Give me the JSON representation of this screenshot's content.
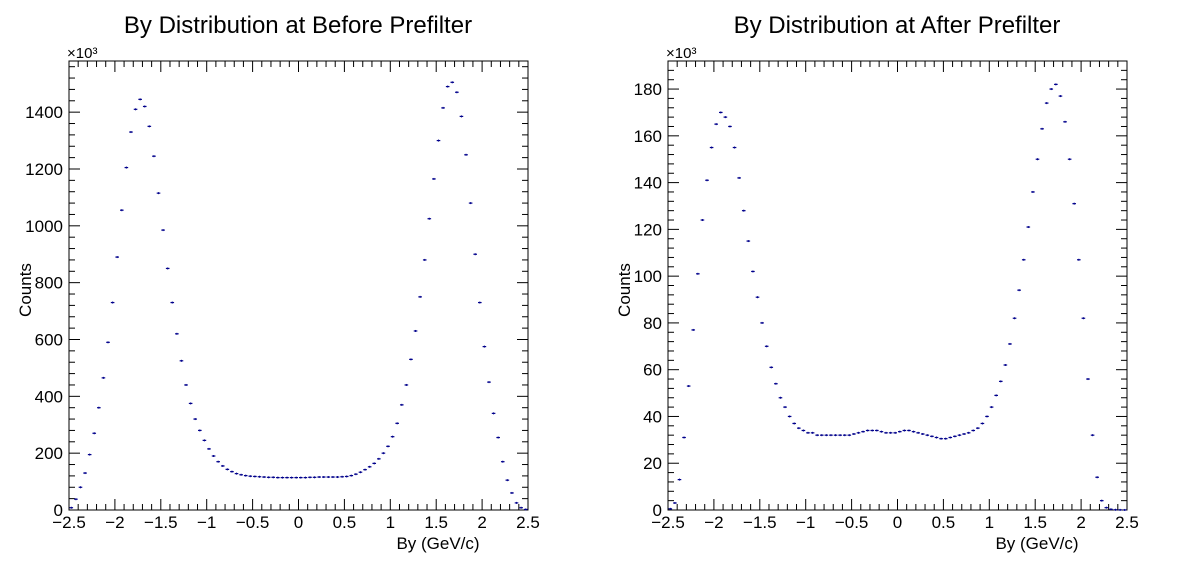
{
  "chart_data": [
    {
      "type": "scatter",
      "title": "By Distribution at Before Prefilter",
      "xlabel": "By (GeV/c)",
      "ylabel": "Counts",
      "y_multiplier_label": "×10³",
      "xlim": [
        -2.5,
        2.5
      ],
      "ylim": [
        0,
        1580
      ],
      "x_ticks": [
        "−2.5",
        "−2",
        "−1.5",
        "−1",
        "−0.5",
        "0",
        "0.5",
        "1",
        "1.5",
        "2",
        "2.5"
      ],
      "x_tick_values": [
        -2.5,
        -2,
        -1.5,
        -1,
        -0.5,
        0,
        0.5,
        1,
        1.5,
        2,
        2.5
      ],
      "y_ticks": [
        "0",
        "200",
        "400",
        "600",
        "800",
        "1000",
        "1200",
        "1400"
      ],
      "y_tick_values": [
        0,
        200,
        400,
        600,
        800,
        1000,
        1200,
        1400
      ],
      "marker_color": "#00008b",
      "grid": false,
      "series": [
        {
          "x": [
            -2.475,
            -2.425,
            -2.375,
            -2.325,
            -2.275,
            -2.225,
            -2.175,
            -2.125,
            -2.075,
            -2.025,
            -1.975,
            -1.925,
            -1.875,
            -1.825,
            -1.775,
            -1.725,
            -1.675,
            -1.625,
            -1.575,
            -1.525,
            -1.475,
            -1.425,
            -1.375,
            -1.325,
            -1.275,
            -1.225,
            -1.175,
            -1.125,
            -1.075,
            -1.025,
            -0.975,
            -0.925,
            -0.875,
            -0.825,
            -0.775,
            -0.725,
            -0.675,
            -0.625,
            -0.575,
            -0.525,
            -0.475,
            -0.425,
            -0.375,
            -0.325,
            -0.275,
            -0.225,
            -0.175,
            -0.125,
            -0.075,
            -0.025,
            0.025,
            0.075,
            0.125,
            0.175,
            0.225,
            0.275,
            0.325,
            0.375,
            0.425,
            0.475,
            0.525,
            0.575,
            0.625,
            0.675,
            0.725,
            0.775,
            0.825,
            0.875,
            0.925,
            0.975,
            1.025,
            1.075,
            1.125,
            1.175,
            1.225,
            1.275,
            1.325,
            1.375,
            1.425,
            1.475,
            1.525,
            1.575,
            1.625,
            1.675,
            1.725,
            1.775,
            1.825,
            1.875,
            1.925,
            1.975,
            2.025,
            2.075,
            2.125,
            2.175,
            2.225,
            2.275,
            2.325,
            2.375,
            2.425,
            2.475
          ],
          "y": [
            8,
            38,
            80,
            130,
            195,
            270,
            360,
            465,
            590,
            730,
            890,
            1055,
            1205,
            1330,
            1410,
            1445,
            1420,
            1350,
            1245,
            1115,
            985,
            850,
            730,
            620,
            525,
            440,
            375,
            320,
            280,
            245,
            215,
            190,
            170,
            155,
            143,
            135,
            128,
            124,
            121,
            119,
            118,
            117,
            116,
            115,
            115,
            114,
            114,
            114,
            114,
            114,
            114,
            114,
            115,
            115,
            116,
            116,
            116,
            116,
            116,
            117,
            118,
            121,
            126,
            133,
            142,
            152,
            164,
            180,
            200,
            224,
            258,
            305,
            370,
            440,
            530,
            630,
            750,
            880,
            1025,
            1165,
            1300,
            1415,
            1490,
            1505,
            1470,
            1385,
            1250,
            1080,
            900,
            730,
            575,
            450,
            340,
            255,
            170,
            105,
            60,
            25,
            8,
            2
          ]
        }
      ]
    },
    {
      "type": "scatter",
      "title": "By Distribution at After Prefilter",
      "xlabel": "By (GeV/c)",
      "ylabel": "Counts",
      "y_multiplier_label": "×10³",
      "xlim": [
        -2.5,
        2.5
      ],
      "ylim": [
        0,
        192
      ],
      "x_ticks": [
        "−2.5",
        "−2",
        "−1.5",
        "−1",
        "−0.5",
        "0",
        "0.5",
        "1",
        "1.5",
        "2",
        "2.5"
      ],
      "x_tick_values": [
        -2.5,
        -2,
        -1.5,
        -1,
        -0.5,
        0,
        0.5,
        1,
        1.5,
        2,
        2.5
      ],
      "y_ticks": [
        "0",
        "20",
        "40",
        "60",
        "80",
        "100",
        "120",
        "140",
        "160",
        "180"
      ],
      "y_tick_values": [
        0,
        20,
        40,
        60,
        80,
        100,
        120,
        140,
        160,
        180
      ],
      "marker_color": "#00008b",
      "grid": false,
      "series": [
        {
          "x": [
            -2.475,
            -2.425,
            -2.375,
            -2.325,
            -2.275,
            -2.225,
            -2.175,
            -2.125,
            -2.075,
            -2.025,
            -1.975,
            -1.925,
            -1.875,
            -1.825,
            -1.775,
            -1.725,
            -1.675,
            -1.625,
            -1.575,
            -1.525,
            -1.475,
            -1.425,
            -1.375,
            -1.325,
            -1.275,
            -1.225,
            -1.175,
            -1.125,
            -1.075,
            -1.025,
            -0.975,
            -0.925,
            -0.875,
            -0.825,
            -0.775,
            -0.725,
            -0.675,
            -0.625,
            -0.575,
            -0.525,
            -0.475,
            -0.425,
            -0.375,
            -0.325,
            -0.275,
            -0.225,
            -0.175,
            -0.125,
            -0.075,
            -0.025,
            0.025,
            0.075,
            0.125,
            0.175,
            0.225,
            0.275,
            0.325,
            0.375,
            0.425,
            0.475,
            0.525,
            0.575,
            0.625,
            0.675,
            0.725,
            0.775,
            0.825,
            0.875,
            0.925,
            0.975,
            1.025,
            1.075,
            1.125,
            1.175,
            1.225,
            1.275,
            1.325,
            1.375,
            1.425,
            1.475,
            1.525,
            1.575,
            1.625,
            1.675,
            1.725,
            1.775,
            1.825,
            1.875,
            1.925,
            1.975,
            2.025,
            2.075,
            2.125,
            2.175,
            2.225,
            2.275,
            2.325,
            2.375,
            2.425,
            2.475
          ],
          "y": [
            0.5,
            3,
            13,
            31,
            53,
            77,
            101,
            124,
            141,
            155,
            165,
            170,
            168,
            164,
            155,
            142,
            128,
            115,
            102,
            91,
            80,
            70,
            61,
            54,
            48,
            44,
            40,
            37,
            35,
            34,
            33,
            33,
            32,
            32,
            32,
            32,
            32,
            32,
            32,
            32,
            32.5,
            33,
            33.5,
            34,
            34,
            34,
            33.5,
            33,
            33,
            33,
            33.5,
            34,
            34,
            33.5,
            33,
            32.5,
            32,
            31.5,
            31,
            30.5,
            30.5,
            31,
            31.5,
            32,
            32.5,
            33,
            34,
            35,
            37,
            40,
            44,
            49,
            55,
            62,
            71,
            82,
            94,
            107,
            121,
            136,
            150,
            163,
            174,
            180,
            182,
            177,
            166,
            150,
            131,
            107,
            82,
            56,
            32,
            14,
            4,
            1,
            0.3,
            0.1,
            0.05,
            0.02
          ]
        }
      ]
    }
  ]
}
